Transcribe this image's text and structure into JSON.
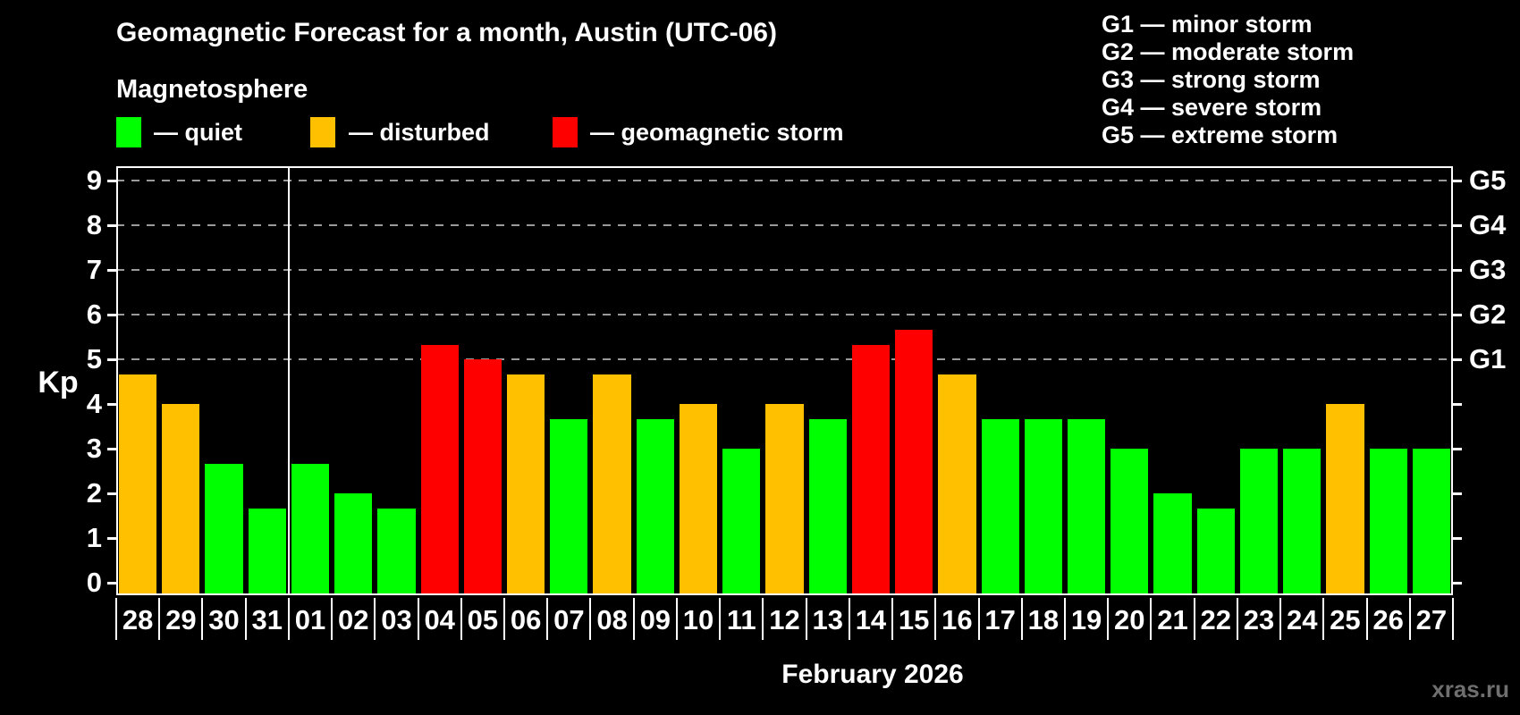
{
  "header": {
    "title": "Geomagnetic Forecast for a month, Austin (UTC-06)",
    "subtitle": "Magnetosphere",
    "legend": [
      {
        "status": "quiet",
        "label": "— quiet",
        "color": "#00ff00"
      },
      {
        "status": "disturbed",
        "label": "— disturbed",
        "color": "#ffc000"
      },
      {
        "status": "storm",
        "label": "— geomagnetic storm",
        "color": "#ff0000"
      }
    ],
    "g_legend": [
      "G1 — minor storm",
      "G2 — moderate storm",
      "G3 — strong storm",
      "G4 — severe storm",
      "G5 — extreme storm"
    ]
  },
  "chart_data": {
    "type": "bar",
    "title": "Geomagnetic Forecast for a month, Austin (UTC-06)",
    "xlabel": "February 2026",
    "ylabel": "Kp",
    "ylim": [
      -0.28,
      9.32
    ],
    "yticks": [
      0,
      1,
      2,
      3,
      4,
      5,
      6,
      7,
      8,
      9
    ],
    "gridlines": [
      5,
      6,
      7,
      8,
      9
    ],
    "grid_style": "dashed",
    "legend_position": "top",
    "right_axis": [
      {
        "value": 5,
        "label": "G1"
      },
      {
        "value": 6,
        "label": "G2"
      },
      {
        "value": 7,
        "label": "G3"
      },
      {
        "value": 8,
        "label": "G4"
      },
      {
        "value": 9,
        "label": "G5"
      }
    ],
    "categories": [
      "28",
      "29",
      "30",
      "31",
      "01",
      "02",
      "03",
      "04",
      "05",
      "06",
      "07",
      "08",
      "09",
      "10",
      "11",
      "12",
      "13",
      "14",
      "15",
      "16",
      "17",
      "18",
      "19",
      "20",
      "21",
      "22",
      "23",
      "24",
      "25",
      "26",
      "27"
    ],
    "values": [
      4.67,
      4.0,
      2.67,
      1.67,
      2.67,
      2.0,
      1.67,
      5.33,
      5.0,
      4.67,
      3.67,
      4.67,
      3.67,
      4.0,
      3.0,
      4.0,
      3.67,
      5.33,
      5.67,
      4.67,
      3.67,
      3.67,
      3.67,
      3.0,
      2.0,
      1.67,
      3.0,
      3.0,
      4.0,
      3.0,
      3.0
    ],
    "statuses": [
      "disturbed",
      "disturbed",
      "quiet",
      "quiet",
      "quiet",
      "quiet",
      "quiet",
      "storm",
      "storm",
      "disturbed",
      "quiet",
      "disturbed",
      "quiet",
      "disturbed",
      "quiet",
      "disturbed",
      "quiet",
      "storm",
      "storm",
      "disturbed",
      "quiet",
      "quiet",
      "quiet",
      "quiet",
      "quiet",
      "quiet",
      "quiet",
      "quiet",
      "disturbed",
      "quiet",
      "quiet"
    ],
    "status_colors": {
      "quiet": "#00ff00",
      "disturbed": "#ffc000",
      "storm": "#ff0000"
    },
    "month_separator_after_index": 3
  },
  "footer": {
    "caption": "February 2026",
    "watermark": "xras.ru"
  }
}
